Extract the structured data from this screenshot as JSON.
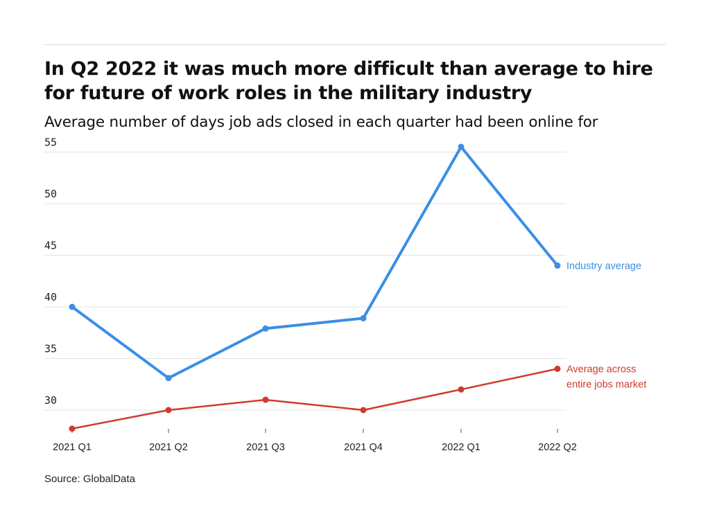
{
  "chart_data": {
    "type": "line",
    "title": "In Q2 2022 it was much more difficult than average to hire for future of work roles in the military industry",
    "subtitle": "Average number of days job ads closed in each quarter had been online for",
    "source": "Source: GlobalData",
    "categories": [
      "2021 Q1",
      "2021 Q2",
      "2021 Q3",
      "2021 Q4",
      "2022 Q1",
      "2022 Q2"
    ],
    "yticks": [
      30,
      35,
      40,
      45,
      50,
      55
    ],
    "ylim": [
      28,
      56
    ],
    "grid": true,
    "series": [
      {
        "name": "Industry average",
        "color": "#3a8ee6",
        "values": [
          40.0,
          33.1,
          37.9,
          38.9,
          55.5,
          44.0
        ]
      },
      {
        "name": "Average across entire jobs market",
        "name_lines": [
          "Average across",
          "entire jobs market"
        ],
        "color": "#d03a2c",
        "values": [
          28.2,
          30.0,
          31.0,
          30.0,
          32.0,
          34.0
        ]
      }
    ]
  }
}
